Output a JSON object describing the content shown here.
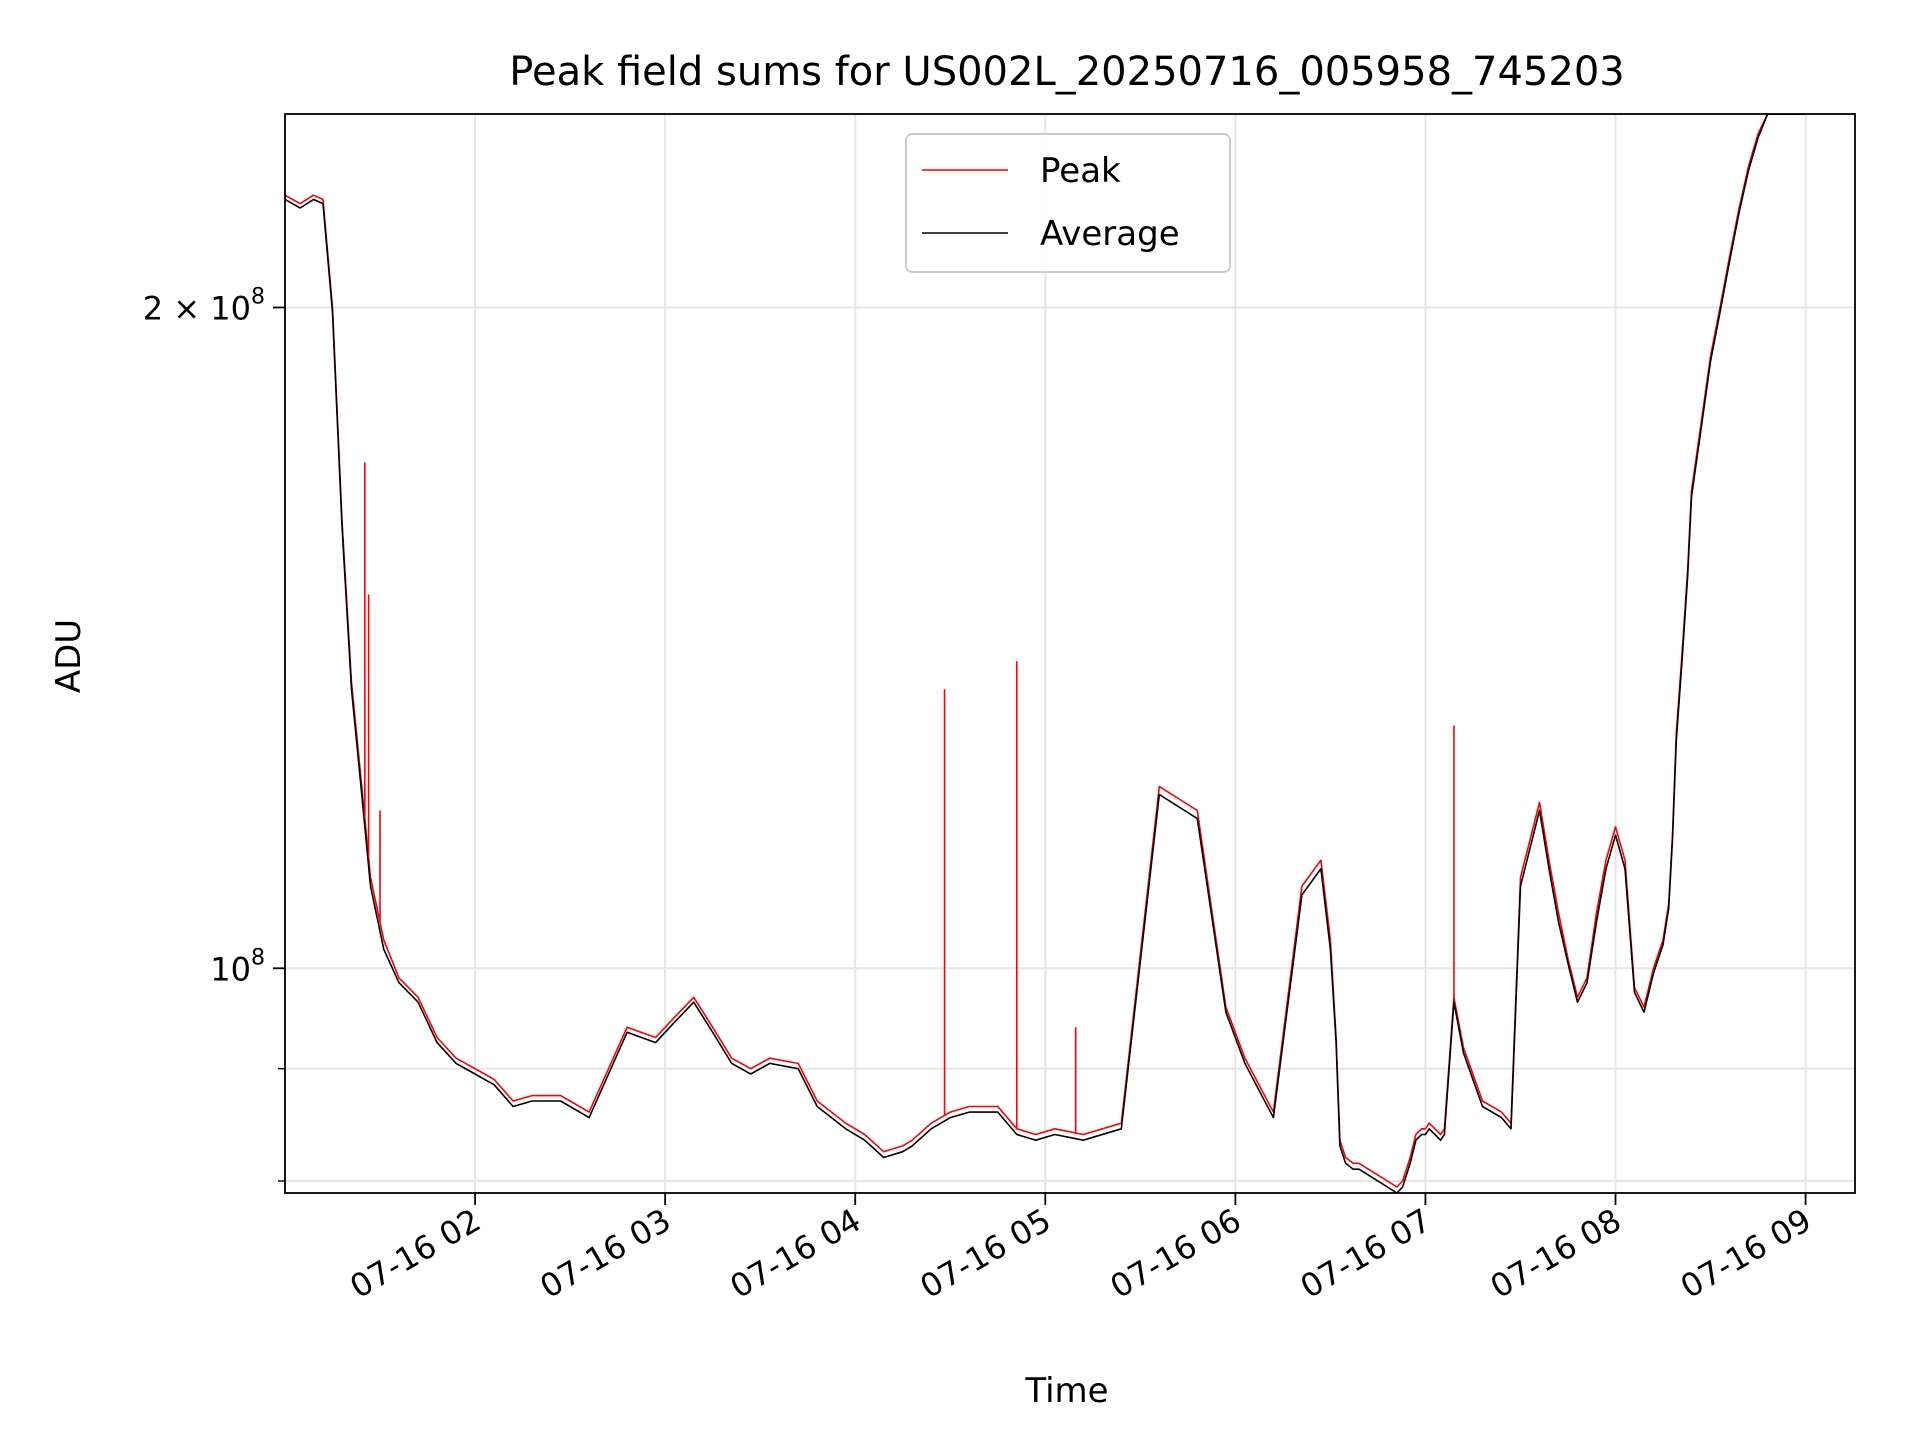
{
  "chart_data": {
    "type": "line",
    "title": "Peak field sums for US002L_20250716_005958_745203",
    "xlabel": "Time",
    "ylabel": "ADU",
    "yscale": "log",
    "xlim": [
      1.0,
      9.26
    ],
    "ylim": [
      79000000,
      245000000
    ],
    "x_ticks": [
      {
        "value": 2,
        "label": "07-16 02"
      },
      {
        "value": 3,
        "label": "07-16 03"
      },
      {
        "value": 4,
        "label": "07-16 04"
      },
      {
        "value": 5,
        "label": "07-16 05"
      },
      {
        "value": 6,
        "label": "07-16 06"
      },
      {
        "value": 7,
        "label": "07-16 07"
      },
      {
        "value": 8,
        "label": "07-16 08"
      },
      {
        "value": 9,
        "label": "07-16 09"
      }
    ],
    "y_major_ticks": [
      {
        "value": 100000000,
        "base": "10",
        "exp": "8"
      },
      {
        "value": 200000000,
        "base": "2 × 10",
        "exp": "8"
      }
    ],
    "y_minor_ticks": [
      80000000,
      90000000
    ],
    "grid": true,
    "legend": {
      "placement": "top-center",
      "entries": [
        "Peak",
        "Average"
      ]
    },
    "series": [
      {
        "name": "Peak",
        "color": "#ff0000",
        "x": [
          1.0,
          1.08,
          1.15,
          1.2,
          1.25,
          1.3,
          1.35,
          1.4,
          1.45,
          1.52,
          1.6,
          1.7,
          1.8,
          1.9,
          2.0,
          2.05,
          2.1,
          2.2,
          2.3,
          2.45,
          2.5,
          2.6,
          2.8,
          2.95,
          3.05,
          3.15,
          3.25,
          3.35,
          3.45,
          3.55,
          3.7,
          3.8,
          3.95,
          4.05,
          4.15,
          4.25,
          4.3,
          4.4,
          4.5,
          4.6,
          4.75,
          4.85,
          4.95,
          5.05,
          5.2,
          5.4,
          5.6,
          5.8,
          5.95,
          6.05,
          6.2,
          6.35,
          6.45,
          6.5,
          6.53,
          6.55,
          6.58,
          6.62,
          6.65,
          6.7,
          6.75,
          6.8,
          6.85,
          6.88,
          6.92,
          6.95,
          6.98,
          7.0,
          7.02,
          7.05,
          7.08,
          7.1,
          7.15,
          7.2,
          7.3,
          7.4,
          7.45,
          7.5,
          7.6,
          7.65,
          7.7,
          7.75,
          7.8,
          7.85,
          7.9,
          7.95,
          8.0,
          8.05,
          8.1,
          8.15,
          8.2,
          8.25,
          8.28,
          8.3,
          8.32,
          8.35,
          8.38,
          8.4,
          8.45,
          8.5,
          8.55,
          8.6,
          8.65,
          8.7,
          8.75,
          8.8,
          8.85,
          8.9,
          8.95,
          9.0
        ],
        "y": [
          225000000,
          223000000,
          225000000,
          224000000,
          200000000,
          160000000,
          135000000,
          122000000,
          110000000,
          103000000,
          99000000,
          97000000,
          93000000,
          91000000,
          90000000,
          89500000,
          89000000,
          87000000,
          87500000,
          87500000,
          87000000,
          86000000,
          94000000,
          93000000,
          95000000,
          97000000,
          94000000,
          91000000,
          90000000,
          91000000,
          90500000,
          87000000,
          85000000,
          84000000,
          82500000,
          83000000,
          83500000,
          85000000,
          86000000,
          86500000,
          86500000,
          84500000,
          84000000,
          84500000,
          84000000,
          85000000,
          121000000,
          118000000,
          96000000,
          91000000,
          86000000,
          109000000,
          112000000,
          103000000,
          93000000,
          83500000,
          82000000,
          81500000,
          81500000,
          81000000,
          80500000,
          80000000,
          79500000,
          80000000,
          82000000,
          84000000,
          84500000,
          84500000,
          85000000,
          84500000,
          84000000,
          84500000,
          97000000,
          92000000,
          87000000,
          86000000,
          85000000,
          110000000,
          119000000,
          112000000,
          106000000,
          101000000,
          97000000,
          99000000,
          106000000,
          112000000,
          116000000,
          112000000,
          98000000,
          96000000,
          100000000,
          103000000,
          107000000,
          115000000,
          128000000,
          139000000,
          152000000,
          165000000,
          177000000,
          190000000,
          200000000,
          211000000,
          222000000,
          232000000,
          240000000,
          245000000,
          245000000,
          245000000,
          245000000,
          245000000
        ]
      },
      {
        "name": "Average",
        "color": "#000000",
        "x": [
          1.0,
          1.08,
          1.15,
          1.2,
          1.25,
          1.3,
          1.35,
          1.4,
          1.45,
          1.52,
          1.6,
          1.7,
          1.8,
          1.9,
          2.0,
          2.05,
          2.1,
          2.2,
          2.3,
          2.45,
          2.5,
          2.6,
          2.8,
          2.95,
          3.05,
          3.15,
          3.25,
          3.35,
          3.45,
          3.55,
          3.7,
          3.8,
          3.95,
          4.05,
          4.15,
          4.25,
          4.3,
          4.4,
          4.5,
          4.6,
          4.75,
          4.85,
          4.95,
          5.05,
          5.2,
          5.4,
          5.6,
          5.8,
          5.95,
          6.05,
          6.2,
          6.35,
          6.45,
          6.5,
          6.53,
          6.55,
          6.58,
          6.62,
          6.65,
          6.7,
          6.75,
          6.8,
          6.85,
          6.88,
          6.92,
          6.95,
          6.98,
          7.0,
          7.02,
          7.05,
          7.08,
          7.1,
          7.15,
          7.2,
          7.3,
          7.4,
          7.45,
          7.5,
          7.6,
          7.65,
          7.7,
          7.75,
          7.8,
          7.85,
          7.9,
          7.95,
          8.0,
          8.05,
          8.1,
          8.15,
          8.2,
          8.25,
          8.28,
          8.3,
          8.32,
          8.35,
          8.38,
          8.4,
          8.45,
          8.5,
          8.55,
          8.6,
          8.65,
          8.7,
          8.75,
          8.8,
          8.85,
          8.9,
          8.95,
          9.0
        ],
        "y": [
          224000000,
          222000000,
          224000000,
          223000000,
          199000000,
          159000000,
          134000000,
          121000000,
          109000000,
          102000000,
          98500000,
          96500000,
          92500000,
          90500000,
          89500000,
          89000000,
          88500000,
          86500000,
          87000000,
          87000000,
          86500000,
          85500000,
          93500000,
          92500000,
          94500000,
          96500000,
          93500000,
          90500000,
          89500000,
          90500000,
          90000000,
          86500000,
          84500000,
          83500000,
          82000000,
          82500000,
          83000000,
          84500000,
          85500000,
          86000000,
          86000000,
          84000000,
          83500000,
          84000000,
          83500000,
          84500000,
          120000000,
          117000000,
          95500000,
          90500000,
          85500000,
          108000000,
          111000000,
          102000000,
          92500000,
          83000000,
          81500000,
          81000000,
          81000000,
          80500000,
          80000000,
          79500000,
          79000000,
          79500000,
          81500000,
          83500000,
          84000000,
          84000000,
          84500000,
          84000000,
          83500000,
          84000000,
          96500000,
          91500000,
          86500000,
          85500000,
          84500000,
          109000000,
          118000000,
          111000000,
          105000000,
          100500000,
          96500000,
          98500000,
          105000000,
          111000000,
          115000000,
          111000000,
          97500000,
          95500000,
          99500000,
          102500000,
          106500000,
          114500000,
          127000000,
          138000000,
          151000000,
          164000000,
          176000000,
          189000000,
          199000000,
          210000000,
          221000000,
          231000000,
          239000000,
          245000000,
          245000000,
          245000000,
          245000000,
          245000000
        ]
      }
    ],
    "spikes": [
      {
        "series": "Peak",
        "x": 1.42,
        "y": 170000000
      },
      {
        "series": "Peak",
        "x": 1.44,
        "y": 148000000
      },
      {
        "series": "Peak",
        "x": 1.5,
        "y": 118000000
      },
      {
        "series": "Peak",
        "x": 4.47,
        "y": 134000000
      },
      {
        "series": "Peak",
        "x": 4.85,
        "y": 138000000
      },
      {
        "series": "Peak",
        "x": 5.16,
        "y": 94000000
      },
      {
        "series": "Peak",
        "x": 7.15,
        "y": 129000000
      }
    ]
  }
}
